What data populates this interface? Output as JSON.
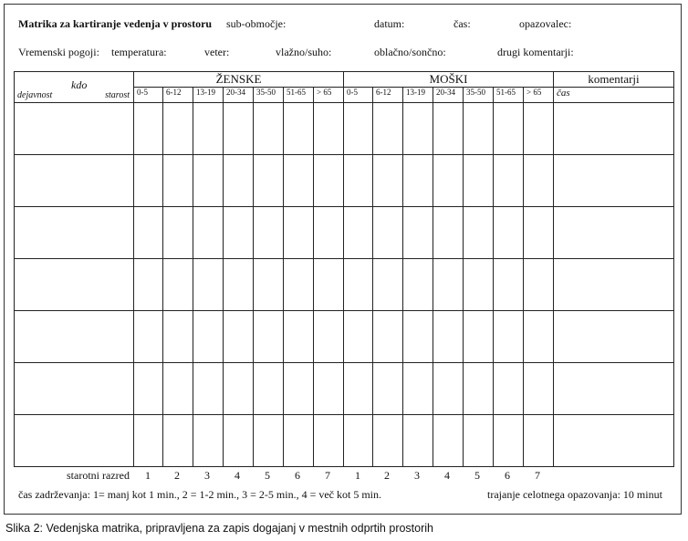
{
  "form": {
    "title": "Matrika za kartiranje vedenja v prostoru",
    "fields_row1": [
      "sub-območje:",
      "datum:",
      "čas:",
      "opazovalec:"
    ],
    "weather_label": "Vremenski pogoji:",
    "fields_row2": [
      "temperatura:",
      "veter:",
      "vlažno/suho:",
      "oblačno/sončno:",
      "drugi komentarji:"
    ]
  },
  "table": {
    "kdo": "kdo",
    "dejavnost": "dejavnost",
    "starost": "starost",
    "women": "ŽENSKE",
    "men": "MOŠKI",
    "comments": "komentarji",
    "cas": "čas",
    "age_groups": [
      "0-5",
      "6-12",
      "13-19",
      "20-34",
      "35-50",
      "51-65",
      "> 65"
    ],
    "row_count": 7
  },
  "footer": {
    "age_class_label": "starotni razred",
    "age_class_numbers": [
      "1",
      "2",
      "3",
      "4",
      "5",
      "6",
      "7"
    ],
    "legend": "čas zadrževanja: 1= manj kot 1 min., 2 = 1-2 min., 3 = 2-5 min., 4 = več kot 5 min.",
    "duration": "trajanje celotnega opazovanja: 10 minut"
  },
  "caption": "Slika 2:  Vedenjska matrika, pripravljena za zapis dogajanj v mestnih odprtih prostorih"
}
